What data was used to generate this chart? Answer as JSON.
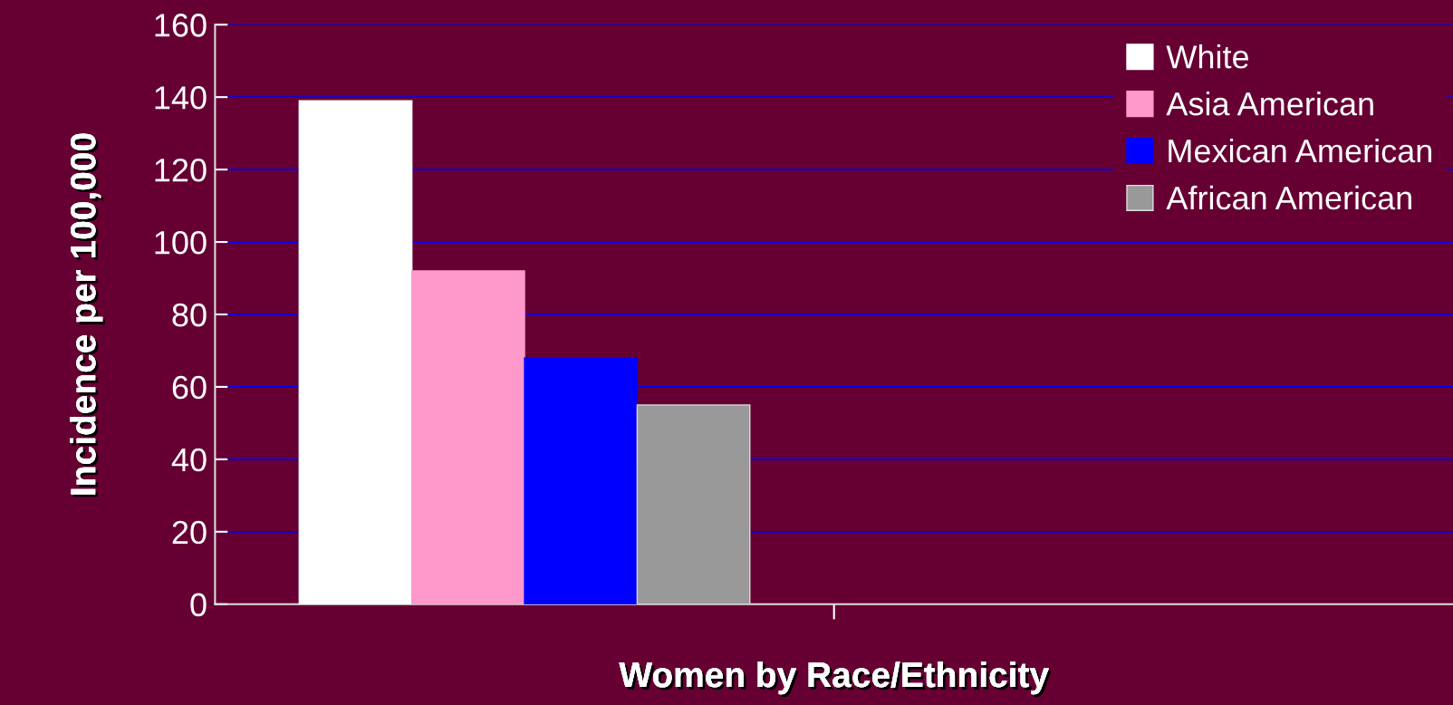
{
  "chart_data": {
    "type": "bar",
    "categories": [
      null,
      null
    ],
    "series": [
      {
        "name": "White",
        "color": "#ffffff",
        "values": [
          139,
          null
        ]
      },
      {
        "name": "Asia American",
        "color": "#ff99cc",
        "values": [
          92,
          null
        ]
      },
      {
        "name": "Mexican American",
        "color": "#0000ff",
        "values": [
          68,
          null
        ]
      },
      {
        "name": "African American",
        "color": "#999999",
        "values": [
          55,
          null
        ]
      }
    ],
    "xlabel": "Women by Race/Ethnicity",
    "ylabel": "Incidence per 100,000",
    "ylim": [
      0,
      160
    ],
    "yticks": [
      0,
      20,
      40,
      60,
      80,
      100,
      120,
      140,
      160
    ],
    "grid": "y",
    "legend": "top right"
  }
}
